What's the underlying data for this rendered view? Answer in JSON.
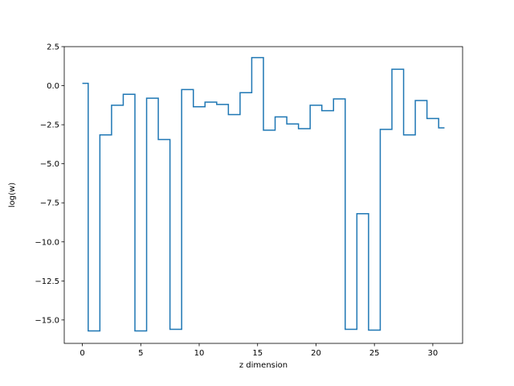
{
  "chart_data": {
    "type": "line",
    "drawstyle": "steps-mid",
    "title": "",
    "xlabel": "z dimension",
    "ylabel": "log(w)",
    "xlim": [
      -1.55,
      32.55
    ],
    "ylim": [
      -16.5,
      2.5
    ],
    "xticks": [
      0,
      5,
      10,
      15,
      20,
      25,
      30
    ],
    "yticks": [
      2.5,
      0.0,
      -2.5,
      -5.0,
      -7.5,
      -10.0,
      -12.5,
      -15.0
    ],
    "ytick_labels": [
      "2.5",
      "0.0",
      "−2.5",
      "−5.0",
      "−7.5",
      "−10.0",
      "−12.5",
      "−15.0"
    ],
    "grid": false,
    "series": [
      {
        "color": "#1f77b4",
        "x": [
          0,
          1,
          2,
          3,
          4,
          5,
          6,
          7,
          8,
          9,
          10,
          11,
          12,
          13,
          14,
          15,
          16,
          17,
          18,
          19,
          20,
          21,
          22,
          23,
          24,
          25,
          26,
          27,
          28,
          29,
          30,
          31
        ],
        "values": [
          0.15,
          -15.7,
          -3.15,
          -1.25,
          -0.55,
          -15.7,
          -0.8,
          -3.45,
          -15.6,
          -0.25,
          -1.35,
          -1.05,
          -1.2,
          -1.85,
          -0.45,
          1.8,
          -2.85,
          -2.0,
          -2.45,
          -2.75,
          -1.25,
          -1.6,
          -0.85,
          -15.6,
          -8.2,
          -15.65,
          -2.8,
          1.05,
          -3.15,
          -0.95,
          -2.1,
          -2.7
        ]
      }
    ]
  }
}
